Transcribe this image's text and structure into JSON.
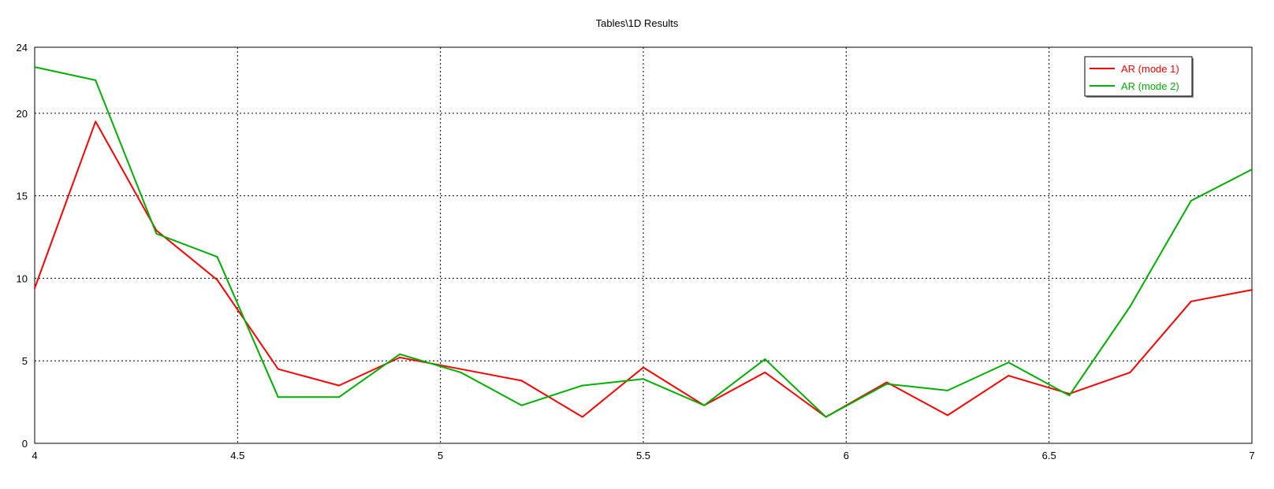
{
  "chart_data": {
    "type": "line",
    "title": "Tables\\1D Results",
    "xlim": [
      4,
      7
    ],
    "ylim": [
      0,
      24
    ],
    "xticks": [
      "4",
      "4.5",
      "5",
      "5.5",
      "6",
      "6.5",
      "7"
    ],
    "yticks": [
      "0",
      "5",
      "10",
      "15",
      "20",
      "24"
    ],
    "ytick_values": [
      0,
      5,
      10,
      15,
      20,
      24
    ],
    "grid": true,
    "legend_position": "top-right",
    "x": [
      4.0,
      4.15,
      4.3,
      4.45,
      4.6,
      4.75,
      4.9,
      5.05,
      5.2,
      5.35,
      5.5,
      5.65,
      5.8,
      5.95,
      6.1,
      6.25,
      6.4,
      6.55,
      6.7,
      6.85,
      7.0
    ],
    "series": [
      {
        "name": "AR (mode 1)",
        "color": "#ff0000",
        "values": [
          9.4,
          19.5,
          12.9,
          9.9,
          4.5,
          3.5,
          5.2,
          4.5,
          3.8,
          1.6,
          4.6,
          2.3,
          4.3,
          1.6,
          3.7,
          1.7,
          4.1,
          3.0,
          4.3,
          8.6,
          9.3
        ]
      },
      {
        "name": "AR (mode 2)",
        "color": "#00b000",
        "values": [
          22.8,
          22.0,
          12.7,
          11.3,
          2.8,
          2.8,
          5.4,
          4.3,
          2.3,
          3.5,
          3.9,
          2.3,
          5.1,
          1.6,
          3.6,
          3.2,
          4.9,
          2.9,
          8.3,
          14.7,
          16.6
        ]
      }
    ]
  }
}
